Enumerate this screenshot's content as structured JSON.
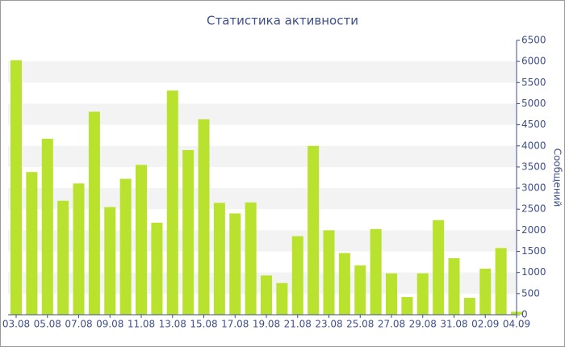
{
  "chart_data": {
    "type": "bar",
    "title": "Статистика активности",
    "y_axis_label": "Сообщений",
    "categories": [
      "03.08",
      null,
      "05.08",
      null,
      "07.08",
      null,
      "09.08",
      null,
      "11.08",
      null,
      "13.08",
      null,
      "15.08",
      null,
      "17.08",
      null,
      "19.08",
      null,
      "21.08",
      null,
      "23.08",
      null,
      "25.08",
      null,
      "27.08",
      null,
      "29.08",
      null,
      "31.08",
      null,
      "02.09",
      null,
      "04.09"
    ],
    "values": [
      6030,
      3380,
      4170,
      2700,
      3110,
      4810,
      2550,
      3220,
      3550,
      2180,
      5310,
      3900,
      4630,
      2650,
      2400,
      2660,
      930,
      750,
      1860,
      4000,
      2000,
      1460,
      1170,
      2030,
      980,
      420,
      980,
      2240,
      1340,
      400,
      1090,
      1580,
      70
    ],
    "color": "#b9e22e",
    "ylim": [
      0,
      6500
    ],
    "yticks": [
      0,
      500,
      1000,
      1500,
      2000,
      2500,
      3000,
      3500,
      4000,
      4500,
      5000,
      5500,
      6000,
      6500
    ],
    "grid": true
  }
}
